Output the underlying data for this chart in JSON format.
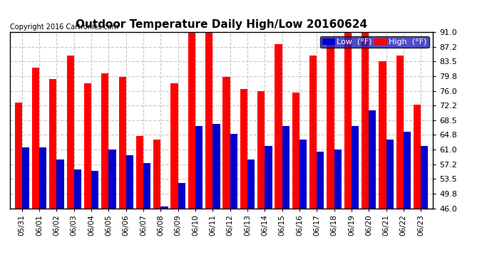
{
  "title": "Outdoor Temperature Daily High/Low 20160624",
  "copyright": "Copyright 2016 Cartronics.com",
  "legend_low": "Low  (°F)",
  "legend_high": "High  (°F)",
  "dates": [
    "05/31",
    "06/01",
    "06/02",
    "06/03",
    "06/04",
    "06/05",
    "06/06",
    "06/07",
    "06/08",
    "06/09",
    "06/10",
    "06/11",
    "06/12",
    "06/13",
    "06/14",
    "06/15",
    "06/16",
    "06/17",
    "06/18",
    "06/19",
    "06/20",
    "06/21",
    "06/22",
    "06/23"
  ],
  "highs": [
    73.0,
    82.0,
    79.0,
    85.0,
    78.0,
    80.5,
    79.5,
    64.5,
    63.5,
    78.0,
    91.0,
    91.0,
    79.5,
    76.5,
    76.0,
    88.0,
    75.5,
    85.0,
    88.0,
    91.0,
    91.0,
    83.5,
    85.0,
    72.5
  ],
  "lows": [
    61.5,
    61.5,
    58.5,
    56.0,
    55.5,
    61.0,
    59.5,
    57.5,
    46.5,
    52.5,
    67.0,
    67.5,
    65.0,
    58.5,
    62.0,
    67.0,
    63.5,
    60.5,
    61.0,
    67.0,
    71.0,
    63.5,
    65.5,
    62.0
  ],
  "ymin": 46.0,
  "ymax": 91.0,
  "yticks": [
    46.0,
    49.8,
    53.5,
    57.2,
    61.0,
    64.8,
    68.5,
    72.2,
    76.0,
    79.8,
    83.5,
    87.2,
    91.0
  ],
  "bar_width": 0.42,
  "high_color": "#ff0000",
  "low_color": "#0000cc",
  "bg_color": "#ffffff",
  "grid_color": "#c8c8c8",
  "title_fontsize": 11,
  "copyright_fontsize": 7,
  "tick_fontsize": 7.5,
  "ytick_fontsize": 8
}
